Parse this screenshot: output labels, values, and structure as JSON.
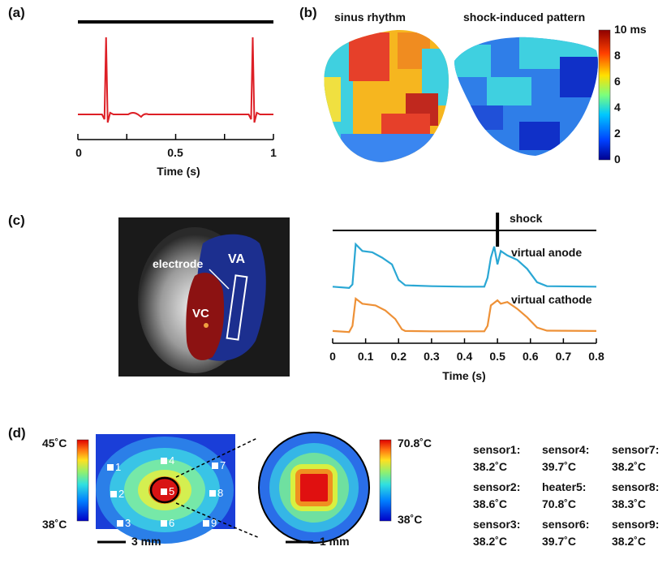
{
  "panels": {
    "a": "(a)",
    "b": "(b)",
    "c": "(c)",
    "d": "(d)"
  },
  "panel_a": {
    "xlabel": "Time (s)",
    "ticks": [
      "0",
      "0.5",
      "1"
    ],
    "trace_color": "#dd1f26",
    "spike_times_s": [
      0.14,
      0.89
    ],
    "t_wave_time_s": 0.34
  },
  "panel_b": {
    "titles": [
      "sinus rhythm",
      "shock-induced pattern"
    ],
    "colorbar_ticks": [
      "10 ms",
      "8",
      "6",
      "4",
      "2",
      "0"
    ],
    "colorbar_range_ms": [
      0,
      10
    ]
  },
  "panel_c": {
    "image_labels": {
      "electrode": "electrode",
      "va": "VA",
      "vc": "VC"
    },
    "shock_label": "shock",
    "series_labels": [
      "virtual anode",
      "virtual cathode"
    ],
    "series_colors": [
      "#2aa7d4",
      "#ee9137"
    ],
    "xlabel": "Time (s)",
    "ticks": [
      "0",
      "0.1",
      "0.2",
      "0.3",
      "0.4",
      "0.5",
      "0.6",
      "0.7",
      "0.8"
    ],
    "xlim": [
      0,
      0.8
    ],
    "shock_time_s": 0.5
  },
  "panel_d": {
    "colorbar1": {
      "max": "45˚C",
      "min": "38˚C"
    },
    "colorbar2": {
      "max": "70.8˚C",
      "min": "38˚C"
    },
    "sensor_markers": [
      "1",
      "2",
      "3",
      "4",
      "5",
      "6",
      "7",
      "8",
      "9"
    ],
    "scale_bar1": "3 mm",
    "scale_bar2": "1 mm",
    "readings": [
      {
        "name": "sensor1:",
        "value": "38.2˚C"
      },
      {
        "name": "sensor4:",
        "value": "39.7˚C"
      },
      {
        "name": "sensor7:",
        "value": "38.2˚C"
      },
      {
        "name": "sensor2:",
        "value": "38.6˚C"
      },
      {
        "name": "heater5:",
        "value": "70.8˚C"
      },
      {
        "name": "sensor8:",
        "value": "38.3˚C"
      },
      {
        "name": "sensor3:",
        "value": "38.2˚C"
      },
      {
        "name": "sensor6:",
        "value": "39.7˚C"
      },
      {
        "name": "sensor9:",
        "value": "38.2˚C"
      }
    ]
  }
}
